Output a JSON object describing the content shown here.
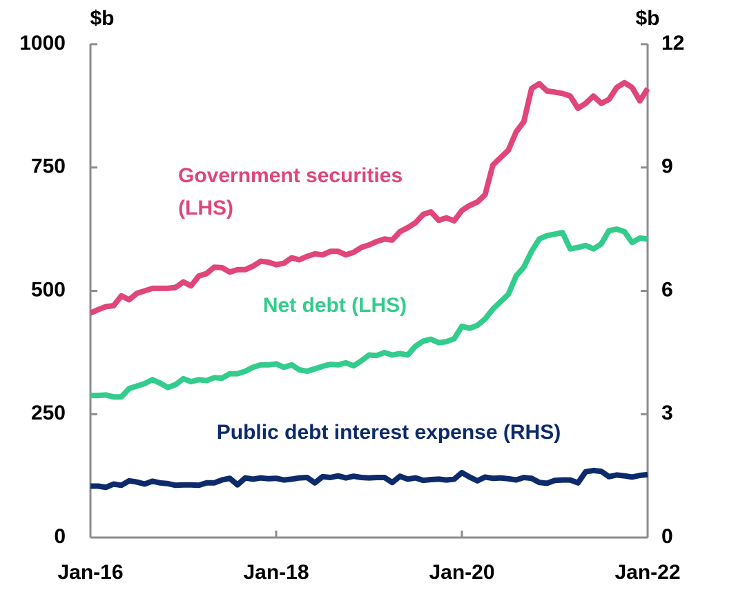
{
  "chart_data": {
    "type": "line",
    "y_label": "$b",
    "y2_label": "$b",
    "categories": [
      "Jan-16",
      null,
      null,
      null,
      null,
      null,
      null,
      null,
      null,
      null,
      null,
      null,
      null,
      null,
      null,
      null,
      null,
      null,
      null,
      null,
      null,
      null,
      null,
      null,
      "Jan-18",
      null,
      null,
      null,
      null,
      null,
      null,
      null,
      null,
      null,
      null,
      null,
      null,
      null,
      null,
      null,
      null,
      null,
      null,
      null,
      null,
      null,
      null,
      null,
      "Jan-20",
      null,
      null,
      null,
      null,
      null,
      null,
      null,
      null,
      null,
      null,
      null,
      null,
      null,
      null,
      null,
      null,
      null,
      null,
      null,
      null,
      null,
      null,
      null,
      "Jan-22"
    ],
    "ylim": [
      0,
      1000
    ],
    "yticks": [
      0,
      250,
      500,
      750,
      1000
    ],
    "y2lim": [
      0,
      12
    ],
    "y2ticks": [
      0,
      3,
      6,
      9,
      12
    ],
    "series": [
      {
        "name": "Government securities (LHS)",
        "color": "#e0457b",
        "values": [
          455,
          462,
          468,
          470,
          490,
          482,
          495,
          500,
          505,
          505,
          505,
          507,
          518,
          510,
          530,
          535,
          548,
          547,
          538,
          543,
          543,
          550,
          560,
          558,
          553,
          556,
          567,
          563,
          570,
          575,
          573,
          580,
          580,
          573,
          578,
          588,
          593,
          600,
          605,
          603,
          620,
          628,
          638,
          655,
          660,
          643,
          648,
          642,
          663,
          673,
          680,
          695,
          755,
          770,
          785,
          822,
          843,
          910,
          920,
          905,
          903,
          900,
          895,
          870,
          880,
          895,
          880,
          888,
          912,
          922,
          912,
          885,
          910
        ]
      },
      {
        "name": "Net debt (LHS)",
        "color": "#33cc8c",
        "values": [
          288,
          288,
          289,
          285,
          285,
          302,
          307,
          312,
          320,
          313,
          304,
          310,
          322,
          316,
          320,
          318,
          324,
          323,
          332,
          332,
          337,
          345,
          350,
          350,
          352,
          345,
          350,
          340,
          337,
          342,
          347,
          351,
          350,
          354,
          348,
          358,
          370,
          369,
          375,
          370,
          373,
          370,
          388,
          398,
          402,
          395,
          397,
          403,
          428,
          424,
          430,
          443,
          463,
          478,
          493,
          530,
          548,
          580,
          605,
          612,
          615,
          618,
          585,
          588,
          592,
          585,
          595,
          622,
          625,
          620,
          598,
          607,
          605
        ]
      },
      {
        "name": "Public debt interest expense (RHS)",
        "color": "#0d2a6b",
        "axis": "y2",
        "values": [
          1.25,
          1.25,
          1.22,
          1.3,
          1.27,
          1.38,
          1.35,
          1.3,
          1.37,
          1.33,
          1.31,
          1.27,
          1.28,
          1.28,
          1.27,
          1.33,
          1.33,
          1.4,
          1.44,
          1.28,
          1.45,
          1.42,
          1.45,
          1.43,
          1.44,
          1.4,
          1.42,
          1.45,
          1.46,
          1.33,
          1.48,
          1.46,
          1.5,
          1.45,
          1.49,
          1.46,
          1.45,
          1.46,
          1.46,
          1.34,
          1.49,
          1.42,
          1.45,
          1.39,
          1.41,
          1.42,
          1.4,
          1.42,
          1.58,
          1.47,
          1.38,
          1.47,
          1.44,
          1.45,
          1.43,
          1.4,
          1.46,
          1.44,
          1.34,
          1.32,
          1.39,
          1.4,
          1.4,
          1.33,
          1.6,
          1.63,
          1.61,
          1.48,
          1.52,
          1.5,
          1.47,
          1.51,
          1.53
        ]
      }
    ]
  }
}
